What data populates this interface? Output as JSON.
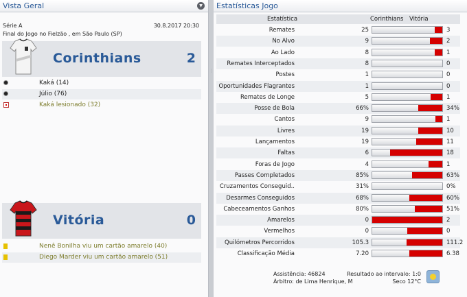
{
  "overview": {
    "title": "Vista Geral",
    "competition": "Série A",
    "match_info": "Final do Jogo no Fielzão , em São Paulo (SP)",
    "datetime": "30.8.2017 20:30",
    "home": {
      "name": "Corinthians",
      "score": "2",
      "events": [
        {
          "type": "goal",
          "text": "Kaká (14)"
        },
        {
          "type": "goal",
          "text": "Júlio (76)"
        },
        {
          "type": "injury",
          "text": "Kaká lesionado (32)"
        }
      ]
    },
    "away": {
      "name": "Vitória",
      "score": "0",
      "events": [
        {
          "type": "card",
          "text": "Nenê Bonilha viu um cartão amarelo (40)"
        },
        {
          "type": "card",
          "text": "Diego Marder viu um cartão amarelo (51)"
        }
      ]
    }
  },
  "stats": {
    "title": "Estatísticas Jogo",
    "header": {
      "stat": "Estatística",
      "home": "Corinthians",
      "away": "Vitória"
    },
    "rows": [
      {
        "label": "Remates",
        "home": "25",
        "away": "3",
        "away_share": 0.11
      },
      {
        "label": "No Alvo",
        "home": "9",
        "away": "2",
        "away_share": 0.18
      },
      {
        "label": "Ao Lado",
        "home": "8",
        "away": "1",
        "away_share": 0.11
      },
      {
        "label": "Remates Interceptados",
        "home": "8",
        "away": "0",
        "away_share": 0.0
      },
      {
        "label": "Postes",
        "home": "1",
        "away": "0",
        "away_share": 0.0
      },
      {
        "label": "Oportunidades Flagrantes",
        "home": "1",
        "away": "0",
        "away_share": 0.0
      },
      {
        "label": "Remates de Longe",
        "home": "5",
        "away": "1",
        "away_share": 0.17
      },
      {
        "label": "Posse de Bola",
        "home": "66%",
        "away": "34%",
        "away_share": 0.34
      },
      {
        "label": "Cantos",
        "home": "9",
        "away": "1",
        "away_share": 0.1
      },
      {
        "label": "Livres",
        "home": "19",
        "away": "10",
        "away_share": 0.34
      },
      {
        "label": "Lançamentos",
        "home": "19",
        "away": "11",
        "away_share": 0.37
      },
      {
        "label": "Faltas",
        "home": "6",
        "away": "18",
        "away_share": 0.75
      },
      {
        "label": "Foras de Jogo",
        "home": "4",
        "away": "1",
        "away_share": 0.2
      },
      {
        "label": "Passes Completados",
        "home": "85%",
        "away": "63%",
        "away_share": 0.43
      },
      {
        "label": "Cruzamentos Conseguid..",
        "home": "31%",
        "away": "0%",
        "away_share": 0.0
      },
      {
        "label": "Desarmes Conseguidos",
        "home": "68%",
        "away": "60%",
        "away_share": 0.47
      },
      {
        "label": "Cabeceamentos Ganhos",
        "home": "80%",
        "away": "51%",
        "away_share": 0.39
      },
      {
        "label": "Amarelos",
        "home": "0",
        "away": "2",
        "away_share": 1.0
      },
      {
        "label": "Vermelhos",
        "home": "0",
        "away": "0",
        "away_share": 0.5
      },
      {
        "label": "Quilómetros Percorridos",
        "home": "105.3",
        "away": "111.2",
        "away_share": 0.51
      },
      {
        "label": "Classificação Média",
        "home": "7.20",
        "away": "6.38",
        "away_share": 0.47
      }
    ],
    "footer": {
      "attendance": "Assistência: 46824",
      "referee": "Árbitro: de Lima Henrique, M",
      "halftime": "Resultado ao intervalo: 1:0",
      "weather": "Seco 12°C"
    }
  },
  "icons": {
    "collapse": "chevron-down-icon",
    "weather": "sun-icon"
  },
  "colors": {
    "title_blue": "#2a5a98",
    "bar_red": "#d50000"
  }
}
